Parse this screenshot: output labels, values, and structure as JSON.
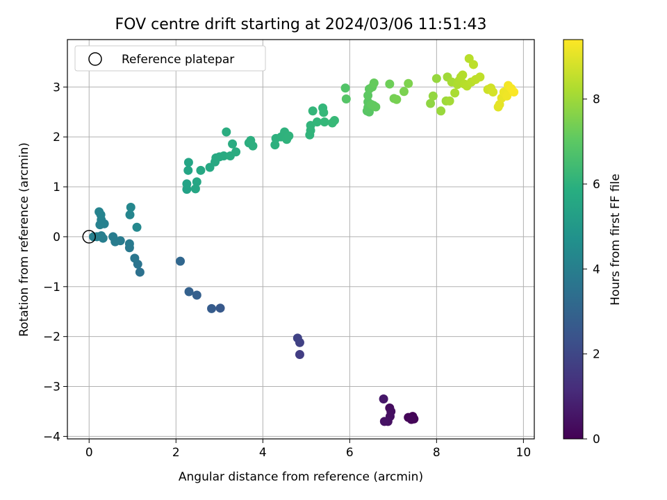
{
  "chart_data": {
    "type": "scatter",
    "title": "FOV centre drift starting at 2024/03/06 11:51:43",
    "xlabel": "Angular distance from reference (arcmin)",
    "ylabel": "Rotation from reference (arcmin)",
    "xlim": [
      -0.5,
      10.25
    ],
    "ylim": [
      -4.05,
      3.95
    ],
    "xticks": [
      0,
      2,
      4,
      6,
      8,
      10
    ],
    "xtick_labels": [
      "0",
      "2",
      "4",
      "6",
      "8",
      "10"
    ],
    "yticks": [
      -4,
      -3,
      -2,
      -1,
      0,
      1,
      2,
      3
    ],
    "ytick_labels": [
      "−4",
      "−3",
      "−2",
      "−1",
      "0",
      "1",
      "2",
      "3"
    ],
    "grid": true,
    "legend": {
      "placement": "upper-left",
      "entries": [
        "Reference platepar"
      ]
    },
    "reference_point": {
      "x": 0,
      "y": 0,
      "marker": "open-circle"
    },
    "colorbar": {
      "label": "Hours from first FF file",
      "range": [
        0,
        9.4
      ],
      "ticks": [
        0,
        2,
        4,
        6,
        8
      ],
      "tick_labels": [
        "0",
        "2",
        "4",
        "6",
        "8"
      ],
      "colormap": "viridis"
    },
    "points": [
      {
        "x": 7.45,
        "y": -3.6,
        "t": 0.05
      },
      {
        "x": 7.48,
        "y": -3.65,
        "t": 0.1
      },
      {
        "x": 7.35,
        "y": -3.62,
        "t": 0.12
      },
      {
        "x": 7.42,
        "y": -3.66,
        "t": 0.15
      },
      {
        "x": 6.92,
        "y": -3.43,
        "t": 0.3
      },
      {
        "x": 6.95,
        "y": -3.5,
        "t": 0.35
      },
      {
        "x": 6.93,
        "y": -3.6,
        "t": 0.38
      },
      {
        "x": 6.88,
        "y": -3.7,
        "t": 0.42
      },
      {
        "x": 6.8,
        "y": -3.7,
        "t": 0.45
      },
      {
        "x": 6.78,
        "y": -3.25,
        "t": 0.6
      },
      {
        "x": 4.85,
        "y": -2.36,
        "t": 1.7
      },
      {
        "x": 4.85,
        "y": -2.12,
        "t": 1.8
      },
      {
        "x": 4.8,
        "y": -2.03,
        "t": 1.85
      },
      {
        "x": 3.02,
        "y": -1.43,
        "t": 2.6
      },
      {
        "x": 2.82,
        "y": -1.44,
        "t": 2.7
      },
      {
        "x": 2.48,
        "y": -1.17,
        "t": 2.85
      },
      {
        "x": 2.3,
        "y": -1.1,
        "t": 2.9
      },
      {
        "x": 2.1,
        "y": -0.49,
        "t": 3.1
      },
      {
        "x": 1.17,
        "y": -0.71,
        "t": 3.5
      },
      {
        "x": 1.12,
        "y": -0.55,
        "t": 3.6
      },
      {
        "x": 1.05,
        "y": -0.43,
        "t": 3.7
      },
      {
        "x": 0.93,
        "y": -0.22,
        "t": 3.8
      },
      {
        "x": 0.93,
        "y": -0.14,
        "t": 3.85
      },
      {
        "x": 0.72,
        "y": -0.08,
        "t": 3.9
      },
      {
        "x": 0.6,
        "y": -0.1,
        "t": 3.92
      },
      {
        "x": 0.55,
        "y": 0.0,
        "t": 3.95
      },
      {
        "x": 0.32,
        "y": -0.03,
        "t": 4.0
      },
      {
        "x": 0.28,
        "y": 0.02,
        "t": 4.02
      },
      {
        "x": 0.18,
        "y": 0.0,
        "t": 4.05
      },
      {
        "x": 0.1,
        "y": 0.0,
        "t": 4.1
      },
      {
        "x": 0.35,
        "y": 0.26,
        "t": 4.1
      },
      {
        "x": 0.25,
        "y": 0.24,
        "t": 4.12
      },
      {
        "x": 0.28,
        "y": 0.34,
        "t": 4.15
      },
      {
        "x": 0.23,
        "y": 0.5,
        "t": 4.2
      },
      {
        "x": 0.27,
        "y": 0.44,
        "t": 4.22
      },
      {
        "x": 0.94,
        "y": 0.44,
        "t": 4.3
      },
      {
        "x": 0.96,
        "y": 0.59,
        "t": 4.35
      },
      {
        "x": 1.1,
        "y": 0.19,
        "t": 4.4
      },
      {
        "x": 2.25,
        "y": 0.95,
        "t": 5.4
      },
      {
        "x": 2.25,
        "y": 1.06,
        "t": 5.45
      },
      {
        "x": 2.28,
        "y": 1.33,
        "t": 5.5
      },
      {
        "x": 2.29,
        "y": 1.49,
        "t": 5.5
      },
      {
        "x": 2.45,
        "y": 0.96,
        "t": 5.55
      },
      {
        "x": 2.48,
        "y": 1.1,
        "t": 5.55
      },
      {
        "x": 2.57,
        "y": 1.33,
        "t": 5.6
      },
      {
        "x": 2.78,
        "y": 1.39,
        "t": 5.62
      },
      {
        "x": 2.9,
        "y": 1.5,
        "t": 5.65
      },
      {
        "x": 2.92,
        "y": 1.58,
        "t": 5.67
      },
      {
        "x": 3.0,
        "y": 1.6,
        "t": 5.7
      },
      {
        "x": 3.1,
        "y": 1.62,
        "t": 5.72
      },
      {
        "x": 3.25,
        "y": 1.62,
        "t": 5.75
      },
      {
        "x": 3.3,
        "y": 1.86,
        "t": 5.77
      },
      {
        "x": 3.38,
        "y": 1.7,
        "t": 5.78
      },
      {
        "x": 3.16,
        "y": 2.1,
        "t": 5.8
      },
      {
        "x": 3.68,
        "y": 1.88,
        "t": 5.85
      },
      {
        "x": 3.72,
        "y": 1.93,
        "t": 5.87
      },
      {
        "x": 3.77,
        "y": 1.82,
        "t": 5.9
      },
      {
        "x": 4.28,
        "y": 1.84,
        "t": 5.95
      },
      {
        "x": 4.3,
        "y": 1.97,
        "t": 5.97
      },
      {
        "x": 4.42,
        "y": 2.0,
        "t": 6.0
      },
      {
        "x": 4.5,
        "y": 2.1,
        "t": 6.02
      },
      {
        "x": 4.55,
        "y": 1.95,
        "t": 6.05
      },
      {
        "x": 4.6,
        "y": 2.02,
        "t": 6.07
      },
      {
        "x": 5.08,
        "y": 2.04,
        "t": 6.1
      },
      {
        "x": 5.1,
        "y": 2.13,
        "t": 6.12
      },
      {
        "x": 5.1,
        "y": 2.23,
        "t": 6.15
      },
      {
        "x": 5.25,
        "y": 2.3,
        "t": 6.17
      },
      {
        "x": 5.15,
        "y": 2.52,
        "t": 6.2
      },
      {
        "x": 5.38,
        "y": 2.58,
        "t": 6.22
      },
      {
        "x": 5.4,
        "y": 2.49,
        "t": 6.25
      },
      {
        "x": 5.42,
        "y": 2.3,
        "t": 6.27
      },
      {
        "x": 5.6,
        "y": 2.28,
        "t": 6.3
      },
      {
        "x": 5.65,
        "y": 2.33,
        "t": 6.32
      },
      {
        "x": 5.9,
        "y": 2.98,
        "t": 6.8
      },
      {
        "x": 5.92,
        "y": 2.76,
        "t": 6.85
      },
      {
        "x": 6.4,
        "y": 2.52,
        "t": 6.9
      },
      {
        "x": 6.45,
        "y": 2.5,
        "t": 6.92
      },
      {
        "x": 6.42,
        "y": 2.59,
        "t": 6.95
      },
      {
        "x": 6.42,
        "y": 2.7,
        "t": 6.97
      },
      {
        "x": 6.42,
        "y": 2.83,
        "t": 7.0
      },
      {
        "x": 6.45,
        "y": 2.96,
        "t": 7.02
      },
      {
        "x": 6.5,
        "y": 2.65,
        "t": 7.05
      },
      {
        "x": 6.55,
        "y": 2.63,
        "t": 7.07
      },
      {
        "x": 6.6,
        "y": 2.6,
        "t": 7.1
      },
      {
        "x": 6.52,
        "y": 3.0,
        "t": 7.1
      },
      {
        "x": 6.56,
        "y": 3.08,
        "t": 7.15
      },
      {
        "x": 6.92,
        "y": 3.06,
        "t": 7.3
      },
      {
        "x": 7.02,
        "y": 2.77,
        "t": 7.4
      },
      {
        "x": 7.08,
        "y": 2.75,
        "t": 7.45
      },
      {
        "x": 7.25,
        "y": 2.91,
        "t": 7.5
      },
      {
        "x": 7.35,
        "y": 3.07,
        "t": 7.55
      },
      {
        "x": 7.86,
        "y": 2.67,
        "t": 7.8
      },
      {
        "x": 7.92,
        "y": 2.82,
        "t": 7.85
      },
      {
        "x": 8.0,
        "y": 3.17,
        "t": 7.9
      },
      {
        "x": 8.1,
        "y": 2.52,
        "t": 7.95
      },
      {
        "x": 8.22,
        "y": 2.72,
        "t": 8.0
      },
      {
        "x": 8.25,
        "y": 3.2,
        "t": 8.05
      },
      {
        "x": 8.3,
        "y": 2.72,
        "t": 8.1
      },
      {
        "x": 8.35,
        "y": 3.1,
        "t": 8.15
      },
      {
        "x": 8.42,
        "y": 2.88,
        "t": 8.2
      },
      {
        "x": 8.48,
        "y": 3.05,
        "t": 8.22
      },
      {
        "x": 8.52,
        "y": 3.13,
        "t": 8.25
      },
      {
        "x": 8.56,
        "y": 3.2,
        "t": 8.3
      },
      {
        "x": 8.6,
        "y": 3.24,
        "t": 8.32
      },
      {
        "x": 8.64,
        "y": 3.06,
        "t": 8.35
      },
      {
        "x": 8.7,
        "y": 3.02,
        "t": 8.38
      },
      {
        "x": 8.75,
        "y": 3.57,
        "t": 8.4
      },
      {
        "x": 8.8,
        "y": 3.1,
        "t": 8.42
      },
      {
        "x": 8.85,
        "y": 3.45,
        "t": 8.45
      },
      {
        "x": 8.9,
        "y": 3.15,
        "t": 8.48
      },
      {
        "x": 9.0,
        "y": 3.2,
        "t": 8.5
      },
      {
        "x": 9.18,
        "y": 2.95,
        "t": 8.7
      },
      {
        "x": 9.25,
        "y": 2.98,
        "t": 8.75
      },
      {
        "x": 9.3,
        "y": 2.9,
        "t": 8.8
      },
      {
        "x": 9.42,
        "y": 2.6,
        "t": 9.0
      },
      {
        "x": 9.45,
        "y": 2.65,
        "t": 9.05
      },
      {
        "x": 9.5,
        "y": 2.78,
        "t": 9.1
      },
      {
        "x": 9.55,
        "y": 2.9,
        "t": 9.15
      },
      {
        "x": 9.62,
        "y": 2.82,
        "t": 9.2
      },
      {
        "x": 9.65,
        "y": 3.03,
        "t": 9.25
      },
      {
        "x": 9.72,
        "y": 2.97,
        "t": 9.3
      },
      {
        "x": 9.78,
        "y": 2.9,
        "t": 9.35
      }
    ]
  }
}
